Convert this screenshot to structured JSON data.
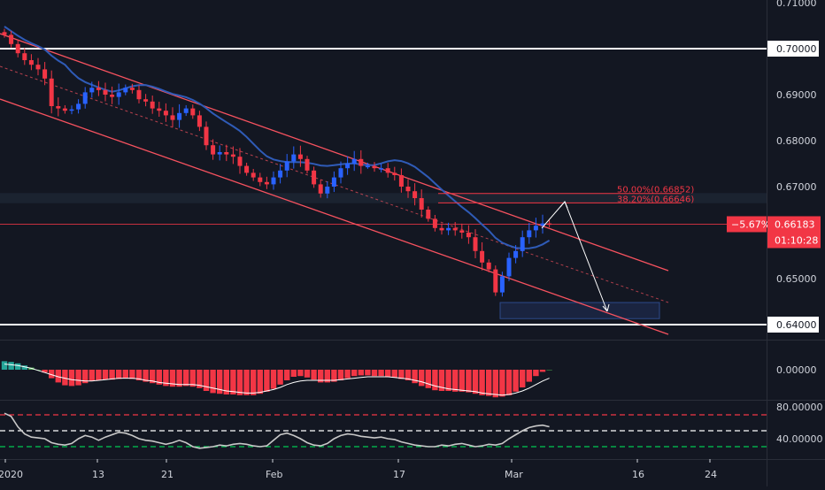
{
  "colors": {
    "background": "#131722",
    "axis_text": "#d1d4dc",
    "bull_candle": "#2962ff",
    "bear_candle": "#f23645",
    "ma_line": "#2f5bb7",
    "channel": "#f7525f",
    "fib": "#f23645",
    "hline": "#ffffff",
    "price_label_bg": "#f23645",
    "hist_pos_strong": "#26a69a",
    "hist_neg": "#f23645",
    "signal_line": "#ffffff",
    "rsi_line": "#c8c8c8",
    "rsi_upper": "#f23645",
    "rsi_lower": "#00c853",
    "rsi_mid": "#ffffff"
  },
  "chart_data": [
    {
      "type": "candlestick",
      "x_axis_labels": [
        "2020",
        "13",
        "21",
        "Feb",
        "17",
        "Mar",
        "16",
        "24"
      ],
      "y_axis_labels": [
        "0.71000",
        "0.70000",
        "0.69000",
        "0.68000",
        "0.67000",
        "0.65000",
        "0.64000"
      ],
      "ylim": [
        0.6373,
        0.711
      ],
      "close": [
        0.703,
        0.701,
        0.699,
        0.6975,
        0.6965,
        0.6955,
        0.6935,
        0.6875,
        0.687,
        0.6865,
        0.6868,
        0.688,
        0.6905,
        0.6915,
        0.691,
        0.69,
        0.6895,
        0.6905,
        0.6915,
        0.691,
        0.689,
        0.6885,
        0.687,
        0.6865,
        0.6855,
        0.6845,
        0.686,
        0.687,
        0.6855,
        0.683,
        0.679,
        0.677,
        0.6775,
        0.677,
        0.6765,
        0.6745,
        0.673,
        0.672,
        0.671,
        0.6705,
        0.672,
        0.6735,
        0.6755,
        0.677,
        0.676,
        0.6735,
        0.6705,
        0.6685,
        0.67,
        0.672,
        0.674,
        0.675,
        0.676,
        0.6745,
        0.6745,
        0.674,
        0.674,
        0.673,
        0.6725,
        0.67,
        0.669,
        0.6675,
        0.665,
        0.663,
        0.661,
        0.6605,
        0.661,
        0.6605,
        0.66,
        0.659,
        0.656,
        0.6535,
        0.652,
        0.647,
        0.6505,
        0.6545,
        0.656,
        0.659,
        0.6605,
        0.6615,
        0.662,
        0.6618
      ],
      "markers": [
        {
          "text": "50.00%(0.66852)",
          "value": 0.66852,
          "type": "fib"
        },
        {
          "text": "38.20%(0.66646)",
          "value": 0.66646,
          "type": "fib"
        },
        {
          "text": "0.70000",
          "value": 0.7,
          "type": "horizontal-line"
        },
        {
          "text": "0.64000",
          "value": 0.64,
          "type": "horizontal-line"
        }
      ],
      "current_price": {
        "value": "0.66183",
        "change": "−5.67%",
        "timer": "01:10:28"
      }
    },
    {
      "type": "histogram",
      "name": "",
      "y_axis_labels": [
        "0.00000"
      ],
      "ylim": [
        -0.005,
        0.005
      ],
      "values": [
        0.0012,
        0.0011,
        0.0009,
        0.0006,
        0.0003,
        0.0,
        -0.0004,
        -0.0012,
        -0.0018,
        -0.0022,
        -0.0023,
        -0.0022,
        -0.0019,
        -0.0016,
        -0.0015,
        -0.0014,
        -0.0014,
        -0.0013,
        -0.0012,
        -0.0013,
        -0.0015,
        -0.0017,
        -0.0019,
        -0.0021,
        -0.0023,
        -0.0024,
        -0.0024,
        -0.0023,
        -0.0024,
        -0.0026,
        -0.003,
        -0.0033,
        -0.0034,
        -0.0035,
        -0.0035,
        -0.0036,
        -0.0036,
        -0.0036,
        -0.0034,
        -0.0031,
        -0.0027,
        -0.0021,
        -0.0015,
        -0.001,
        -0.0009,
        -0.0011,
        -0.0014,
        -0.0018,
        -0.0018,
        -0.0017,
        -0.0015,
        -0.0012,
        -0.0009,
        -0.0008,
        -0.0008,
        -0.0009,
        -0.0009,
        -0.001,
        -0.0011,
        -0.0013,
        -0.0015,
        -0.0019,
        -0.0023,
        -0.0026,
        -0.0029,
        -0.003,
        -0.003,
        -0.0031,
        -0.0031,
        -0.0032,
        -0.0034,
        -0.0036,
        -0.0037,
        -0.0039,
        -0.0038,
        -0.0036,
        -0.0031,
        -0.0025,
        -0.0017,
        -0.0009,
        -0.0003,
        0.0
      ],
      "signal": [
        0.0008,
        0.0007,
        0.0006,
        0.0004,
        0.0002,
        -0.0001,
        -0.0004,
        -0.0007,
        -0.001,
        -0.0012,
        -0.0014,
        -0.0015,
        -0.0016,
        -0.0016,
        -0.0015,
        -0.0014,
        -0.0013,
        -0.0012,
        -0.0012,
        -0.0012,
        -0.0013,
        -0.0015,
        -0.0016,
        -0.0018,
        -0.0019,
        -0.002,
        -0.0021,
        -0.0021,
        -0.0021,
        -0.0022,
        -0.0024,
        -0.0026,
        -0.0028,
        -0.003,
        -0.0031,
        -0.0032,
        -0.0033,
        -0.0033,
        -0.0032,
        -0.003,
        -0.0028,
        -0.0025,
        -0.0021,
        -0.0018,
        -0.0016,
        -0.0015,
        -0.0015,
        -0.0015,
        -0.0015,
        -0.0015,
        -0.0014,
        -0.0013,
        -0.0012,
        -0.0011,
        -0.001,
        -0.001,
        -0.001,
        -0.001,
        -0.0011,
        -0.0012,
        -0.0013,
        -0.0015,
        -0.0017,
        -0.002,
        -0.0023,
        -0.0025,
        -0.0027,
        -0.0028,
        -0.0029,
        -0.003,
        -0.0031,
        -0.0033,
        -0.0034,
        -0.0035,
        -0.0036,
        -0.0035,
        -0.0033,
        -0.003,
        -0.0026,
        -0.0021,
        -0.0016,
        -0.0012
      ]
    },
    {
      "type": "line",
      "name": "",
      "y_axis_labels": [
        "80.00000",
        "40.00000"
      ],
      "ylim": [
        20,
        90
      ],
      "levels": [
        70,
        50,
        30
      ],
      "values": [
        72,
        68,
        55,
        46,
        42,
        41,
        40,
        35,
        33,
        32,
        34,
        40,
        44,
        42,
        38,
        42,
        45,
        48,
        47,
        44,
        40,
        38,
        37,
        35,
        33,
        35,
        38,
        35,
        30,
        28,
        29,
        30,
        32,
        31,
        33,
        34,
        33,
        31,
        30,
        31,
        38,
        45,
        47,
        44,
        40,
        35,
        32,
        31,
        34,
        40,
        44,
        46,
        45,
        43,
        42,
        41,
        42,
        40,
        39,
        36,
        34,
        32,
        31,
        30,
        30,
        32,
        31,
        33,
        34,
        32,
        30,
        31,
        33,
        32,
        34,
        40,
        45,
        50,
        54,
        56,
        57,
        55
      ]
    }
  ]
}
